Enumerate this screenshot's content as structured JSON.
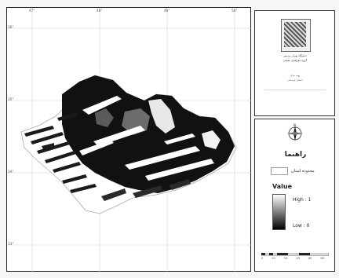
{
  "map": {
    "ticks_top": [
      "47°",
      "48°",
      "49°",
      "50°"
    ],
    "ticks_left": [
      "36°",
      "35°",
      "34°",
      "33°"
    ],
    "colors": {
      "land_dark": "#111111",
      "land_mid": "#6b6b6b",
      "land_light": "#e8e8e8",
      "grid": "#d0d0d0"
    }
  },
  "title_panel": {
    "org_line_1": "دانشگاه تهران پردیس",
    "org_line_2": "گروه جغرافیای طبیعی",
    "caption_1": "پهنه بندی",
    "caption_2": "استان لرستان",
    "caption_3": ""
  },
  "legend": {
    "north_icon": "north-arrow-icon",
    "north_letter": "N",
    "title": "راهنما",
    "province_label": "محدوده استان",
    "value_title": "Value",
    "high_label": "High : 1",
    "low_label": "Low : 0",
    "ramp_high_color": "#ffffff",
    "ramp_low_color": "#000000",
    "scale_labels": [
      "0",
      "10",
      "20",
      "40",
      "60",
      "80"
    ]
  }
}
